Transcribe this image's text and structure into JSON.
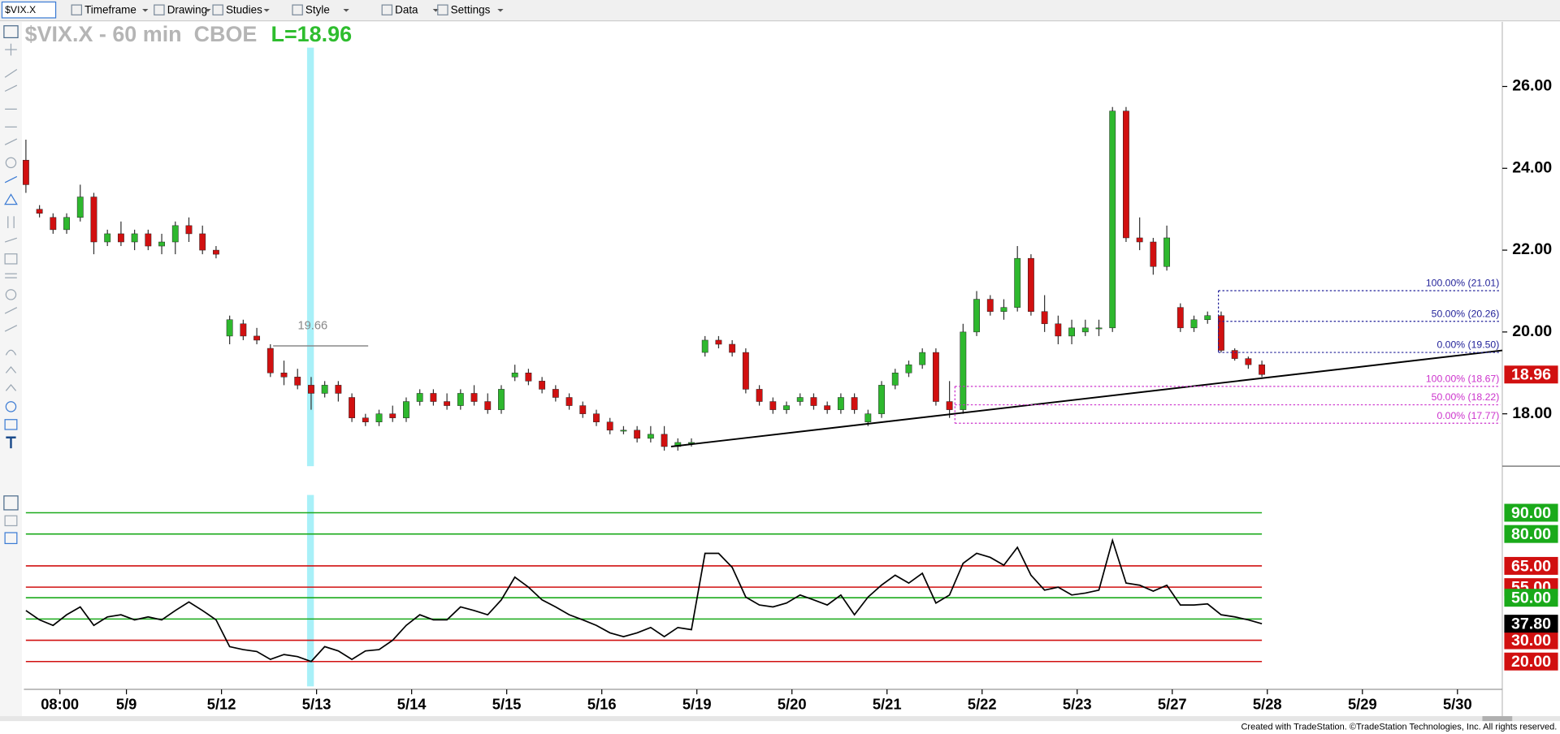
{
  "toolbar": {
    "symbol": "$VIX.X",
    "menus": [
      "Timeframe",
      "Drawing",
      "Studies",
      "Style",
      "Data",
      "Settings"
    ]
  },
  "chart_data": [
    {
      "type": "candlestick",
      "title": "$VIX.X - 60 min  CBOE",
      "last_label": "L=18.96",
      "current_label": "18.96",
      "open": [
        24.2,
        23.0,
        22.8,
        22.5,
        22.8,
        23.3,
        22.2,
        22.4,
        22.2,
        22.4,
        22.1,
        22.2,
        22.6,
        22.4,
        22.0,
        19.9,
        20.2,
        19.9,
        19.6,
        19.0,
        18.9,
        18.7,
        18.5,
        18.7,
        18.4,
        17.9,
        17.8,
        18.0,
        17.9,
        18.3,
        18.5,
        18.3,
        18.2,
        18.5,
        18.3,
        18.1,
        18.9,
        19.0,
        18.8,
        18.6,
        18.4,
        18.2,
        18.0,
        17.8,
        17.6,
        17.6,
        17.4,
        17.5,
        17.2,
        17.3,
        19.5,
        19.8,
        19.7,
        19.5,
        18.6,
        18.3,
        18.1,
        18.3,
        18.4,
        18.2,
        18.1,
        18.4,
        17.8,
        18.0,
        18.7,
        19.0,
        19.2,
        19.5,
        18.3,
        18.1,
        20.0,
        20.8,
        20.5,
        20.6,
        21.8,
        20.5,
        20.2,
        19.9,
        20.0,
        20.1,
        20.1,
        25.4,
        22.3,
        22.2,
        21.6,
        20.6,
        20.1,
        20.3,
        20.4,
        19.55,
        19.35,
        19.2
      ],
      "high": [
        24.7,
        23.1,
        22.9,
        22.9,
        23.6,
        23.4,
        22.5,
        22.7,
        22.5,
        22.5,
        22.4,
        22.7,
        22.8,
        22.6,
        22.1,
        20.4,
        20.3,
        20.1,
        19.7,
        19.3,
        19.1,
        18.9,
        18.8,
        18.8,
        18.5,
        18.0,
        18.1,
        18.2,
        18.4,
        18.6,
        18.6,
        18.5,
        18.6,
        18.7,
        18.5,
        18.7,
        19.2,
        19.1,
        18.9,
        18.7,
        18.5,
        18.3,
        18.1,
        17.9,
        17.7,
        17.7,
        17.7,
        17.7,
        17.4,
        17.4,
        19.9,
        19.9,
        19.8,
        19.6,
        18.7,
        18.4,
        18.3,
        18.5,
        18.5,
        18.3,
        18.5,
        18.5,
        18.1,
        18.8,
        19.1,
        19.3,
        19.6,
        19.6,
        18.8,
        20.2,
        21.0,
        20.9,
        20.8,
        22.1,
        21.9,
        20.9,
        20.4,
        20.3,
        20.3,
        20.3,
        25.5,
        25.5,
        22.8,
        22.3,
        22.6,
        20.7,
        20.4,
        20.5,
        20.5,
        19.6,
        19.4,
        19.3
      ],
      "low": [
        23.4,
        22.8,
        22.4,
        22.4,
        22.7,
        21.9,
        22.1,
        22.1,
        22.0,
        22.0,
        21.9,
        21.9,
        22.2,
        21.9,
        21.8,
        19.7,
        19.8,
        19.7,
        18.9,
        18.7,
        18.6,
        18.1,
        18.4,
        18.3,
        17.8,
        17.7,
        17.7,
        17.8,
        17.8,
        18.2,
        18.2,
        18.1,
        18.1,
        18.2,
        18.0,
        18.0,
        18.8,
        18.7,
        18.5,
        18.3,
        18.1,
        17.9,
        17.7,
        17.5,
        17.5,
        17.3,
        17.3,
        17.1,
        17.1,
        17.2,
        19.4,
        19.6,
        19.4,
        18.5,
        18.2,
        18.0,
        18.0,
        18.2,
        18.1,
        18.0,
        18.0,
        18.0,
        17.7,
        17.9,
        18.6,
        18.9,
        19.1,
        18.2,
        17.9,
        18.0,
        19.9,
        20.4,
        20.3,
        20.5,
        20.4,
        20.0,
        19.7,
        19.7,
        19.9,
        19.9,
        20.0,
        22.2,
        22.0,
        21.4,
        21.5,
        20.0,
        20.0,
        20.2,
        19.5,
        19.3,
        19.1,
        18.9
      ],
      "close": [
        23.6,
        22.9,
        22.5,
        22.8,
        23.3,
        22.2,
        22.4,
        22.2,
        22.4,
        22.1,
        22.2,
        22.6,
        22.4,
        22.0,
        21.9,
        20.3,
        19.9,
        19.8,
        19.0,
        18.9,
        18.7,
        18.5,
        18.7,
        18.5,
        17.9,
        17.8,
        18.0,
        17.9,
        18.3,
        18.5,
        18.3,
        18.2,
        18.5,
        18.3,
        18.1,
        18.6,
        19.0,
        18.8,
        18.6,
        18.4,
        18.2,
        18.0,
        17.8,
        17.6,
        17.6,
        17.4,
        17.5,
        17.2,
        17.3,
        17.3,
        19.8,
        19.7,
        19.5,
        18.6,
        18.3,
        18.1,
        18.2,
        18.4,
        18.2,
        18.1,
        18.4,
        18.1,
        18.0,
        18.7,
        19.0,
        19.2,
        19.5,
        18.3,
        18.1,
        20.0,
        20.8,
        20.5,
        20.6,
        21.8,
        20.5,
        20.2,
        19.9,
        20.1,
        20.1,
        20.1,
        25.4,
        22.3,
        22.2,
        21.6,
        22.3,
        20.1,
        20.3,
        20.4,
        19.55,
        19.35,
        19.2,
        18.96
      ],
      "colors": {
        "up": "#2eb82e",
        "down": "#d11010",
        "wick": "#333333",
        "title": "#b5b5b5",
        "last": "#2ebd2e",
        "highlight": "#a8f0f8"
      },
      "xlim": [
        -0.15,
        108.7
      ],
      "ylim": [
        16.72,
        27.58
      ],
      "yticks": [
        {
          "value": 18,
          "label": "18.00"
        },
        {
          "value": 20,
          "label": "20.00"
        },
        {
          "value": 22,
          "label": "22.00"
        },
        {
          "value": 24,
          "label": "24.00"
        },
        {
          "value": 26,
          "label": "26.00"
        }
      ],
      "highlight_x": [
        20.7,
        21.2
      ],
      "trendline": {
        "x": [
          47.5,
          108.7
        ],
        "values": [
          17.2,
          19.55
        ],
        "color": "#000000"
      },
      "hline": {
        "label": "19.66",
        "value": 19.66,
        "x": [
          18.2,
          25.2
        ],
        "color": "#888888"
      },
      "fib": [
        {
          "x": 87.8,
          "color": "#23239a",
          "levels": [
            {
              "value": 21.01,
              "label": "100.00% (21.01)"
            },
            {
              "value": 20.26,
              "label": "50.00% (20.26)"
            },
            {
              "value": 19.5,
              "label": "0.00% (19.50)"
            }
          ]
        },
        {
          "x": 68.4,
          "color": "#cc33cc",
          "levels": [
            {
              "value": 18.67,
              "label": "100.00% (18.67)"
            },
            {
              "value": 18.22,
              "label": "50.00% (18.22)"
            },
            {
              "value": 17.77,
              "label": "0.00% (17.77)"
            }
          ]
        }
      ]
    },
    {
      "type": "line",
      "color": "#000000",
      "current_label": "37.80",
      "values": [
        44,
        39.6,
        37,
        42,
        45.7,
        37,
        41,
        42,
        39.6,
        41,
        39.6,
        44,
        48,
        44,
        39.6,
        27,
        25.6,
        24.7,
        21,
        23.3,
        22.3,
        20,
        27,
        25,
        21,
        25,
        25.6,
        30,
        37,
        42,
        39.6,
        39.6,
        45.7,
        44,
        42,
        49,
        59.7,
        55,
        49,
        45.7,
        42,
        39.6,
        37,
        33.5,
        31.7,
        33.5,
        36,
        31.7,
        36,
        35,
        70.9,
        70.9,
        64.3,
        50.3,
        46.6,
        45.7,
        47.5,
        51.3,
        49,
        46.6,
        51.3,
        42,
        50.3,
        56,
        60.6,
        56.9,
        61.5,
        47.5,
        51.3,
        66.2,
        70.9,
        69,
        65.3,
        73.7,
        60.6,
        53.6,
        55,
        51.3,
        52.2,
        53.6,
        77,
        56.9,
        55.9,
        53.1,
        55.9,
        46.6,
        46.6,
        47.1,
        42,
        41,
        39.6,
        37.8
      ],
      "xlim": [
        -0.15,
        108.7
      ],
      "ylim": [
        6.9,
        99.3
      ],
      "levels": [
        {
          "value": 90,
          "label": "90.00",
          "color": "#1aaa1a"
        },
        {
          "value": 80,
          "label": "80.00",
          "color": "#1aaa1a"
        },
        {
          "value": 65,
          "label": "65.00",
          "color": "#d11010"
        },
        {
          "value": 55,
          "label": "55.00",
          "color": "#d11010"
        },
        {
          "value": 50,
          "label": "50.00",
          "color": "#1aaa1a"
        },
        {
          "value": 40,
          "color": "#1aaa1a"
        },
        {
          "value": 30,
          "label": "30.00",
          "color": "#d11010"
        },
        {
          "value": 20,
          "label": "20.00",
          "color": "#d11010"
        }
      ],
      "xticks": [
        {
          "value": 2.5,
          "label": "08:00"
        },
        {
          "value": 7.4,
          "label": "5/9"
        },
        {
          "value": 14.4,
          "label": "5/12"
        },
        {
          "value": 21.4,
          "label": "5/13"
        },
        {
          "value": 28.4,
          "label": "5/14"
        },
        {
          "value": 35.4,
          "label": "5/15"
        },
        {
          "value": 42.4,
          "label": "5/16"
        },
        {
          "value": 49.4,
          "label": "5/19"
        },
        {
          "value": 56.4,
          "label": "5/20"
        },
        {
          "value": 63.4,
          "label": "5/21"
        },
        {
          "value": 70.4,
          "label": "5/22"
        },
        {
          "value": 77.4,
          "label": "5/23"
        },
        {
          "value": 84.4,
          "label": "5/27"
        },
        {
          "value": 91.4,
          "label": "5/28"
        },
        {
          "value": 98.4,
          "label": "5/29"
        },
        {
          "value": 105.4,
          "label": "5/30"
        }
      ]
    }
  ],
  "footer": "Created with TradeStation. ©TradeStation Technologies, Inc. All rights reserved."
}
